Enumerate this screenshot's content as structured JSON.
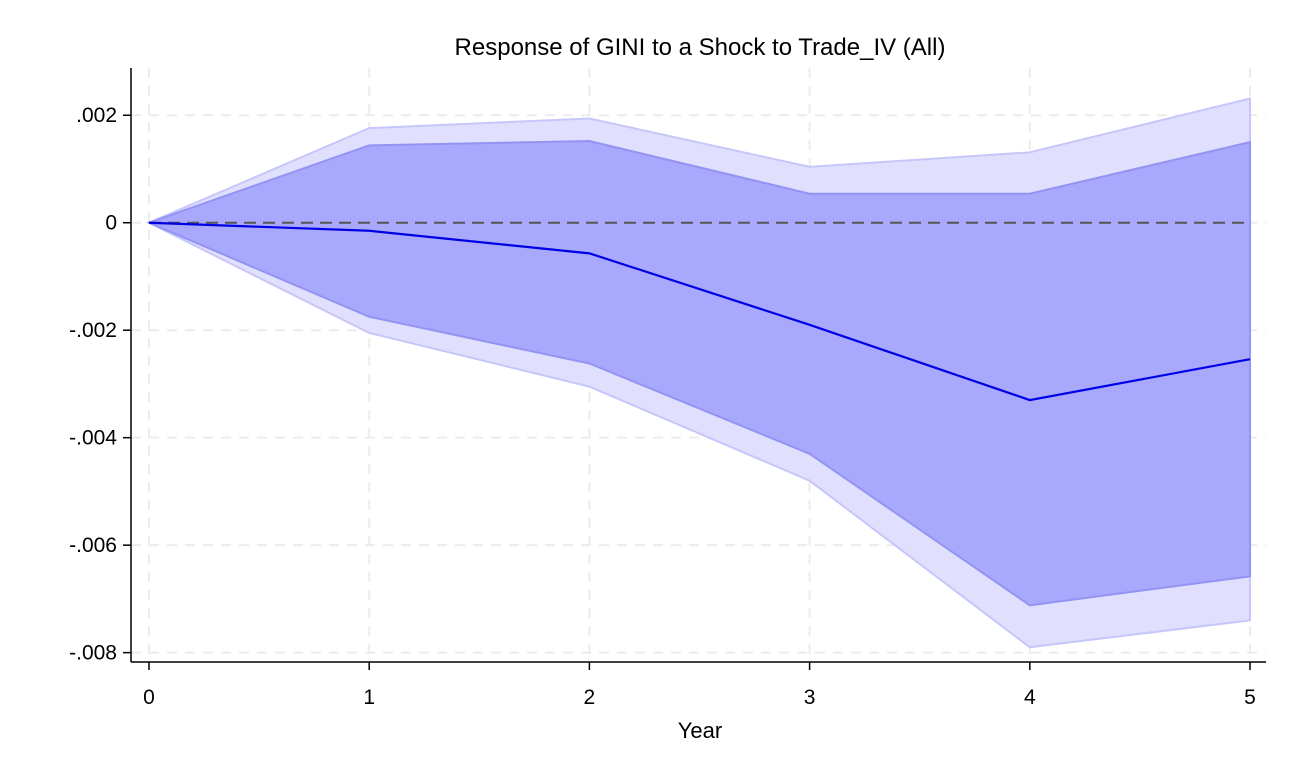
{
  "chart_data": {
    "type": "area",
    "title": "Response of GINI to a Shock to Trade_IV (All)",
    "xlabel": "Year",
    "ylabel": "",
    "x": [
      0,
      1,
      2,
      3,
      4,
      5
    ],
    "xlim": [
      0,
      5
    ],
    "ylim": [
      -0.0081,
      0.0026
    ],
    "xticks": [
      0,
      1,
      2,
      3,
      4,
      5
    ],
    "xtick_labels": [
      "0",
      "1",
      "2",
      "3",
      "4",
      "5"
    ],
    "yticks": [
      0.002,
      0,
      -0.002,
      -0.004,
      -0.006,
      -0.008
    ],
    "ytick_labels": [
      ".002",
      "0",
      "-.002",
      "-.004",
      "-.006",
      "-.008"
    ],
    "grid": true,
    "reference_line": 0,
    "series": [
      {
        "role": "band-outer",
        "lower": [
          0,
          -0.00205,
          -0.00305,
          -0.0048,
          -0.0079,
          -0.0074
        ],
        "upper": [
          0,
          0.00176,
          0.00194,
          0.00104,
          0.00131,
          0.00231
        ]
      },
      {
        "role": "band-inner",
        "lower": [
          0,
          -0.00175,
          -0.00262,
          -0.0043,
          -0.00712,
          -0.00658
        ],
        "upper": [
          0,
          0.00144,
          0.00152,
          0.00054,
          0.00054,
          0.0015
        ]
      },
      {
        "role": "estimate",
        "values": [
          0,
          -0.00015,
          -0.00057,
          -0.0019,
          -0.0033,
          -0.00254
        ]
      }
    ],
    "colors": {
      "band_outer": "#e0e0fe",
      "band_outer_edge": "#c6c6fa",
      "band_inner": "#a8a8fc",
      "band_inner_edge": "#9393f3",
      "estimate_line": "#0000e6",
      "reference_line": "#555555",
      "grid": "#ececec",
      "axis": "#000000"
    }
  }
}
